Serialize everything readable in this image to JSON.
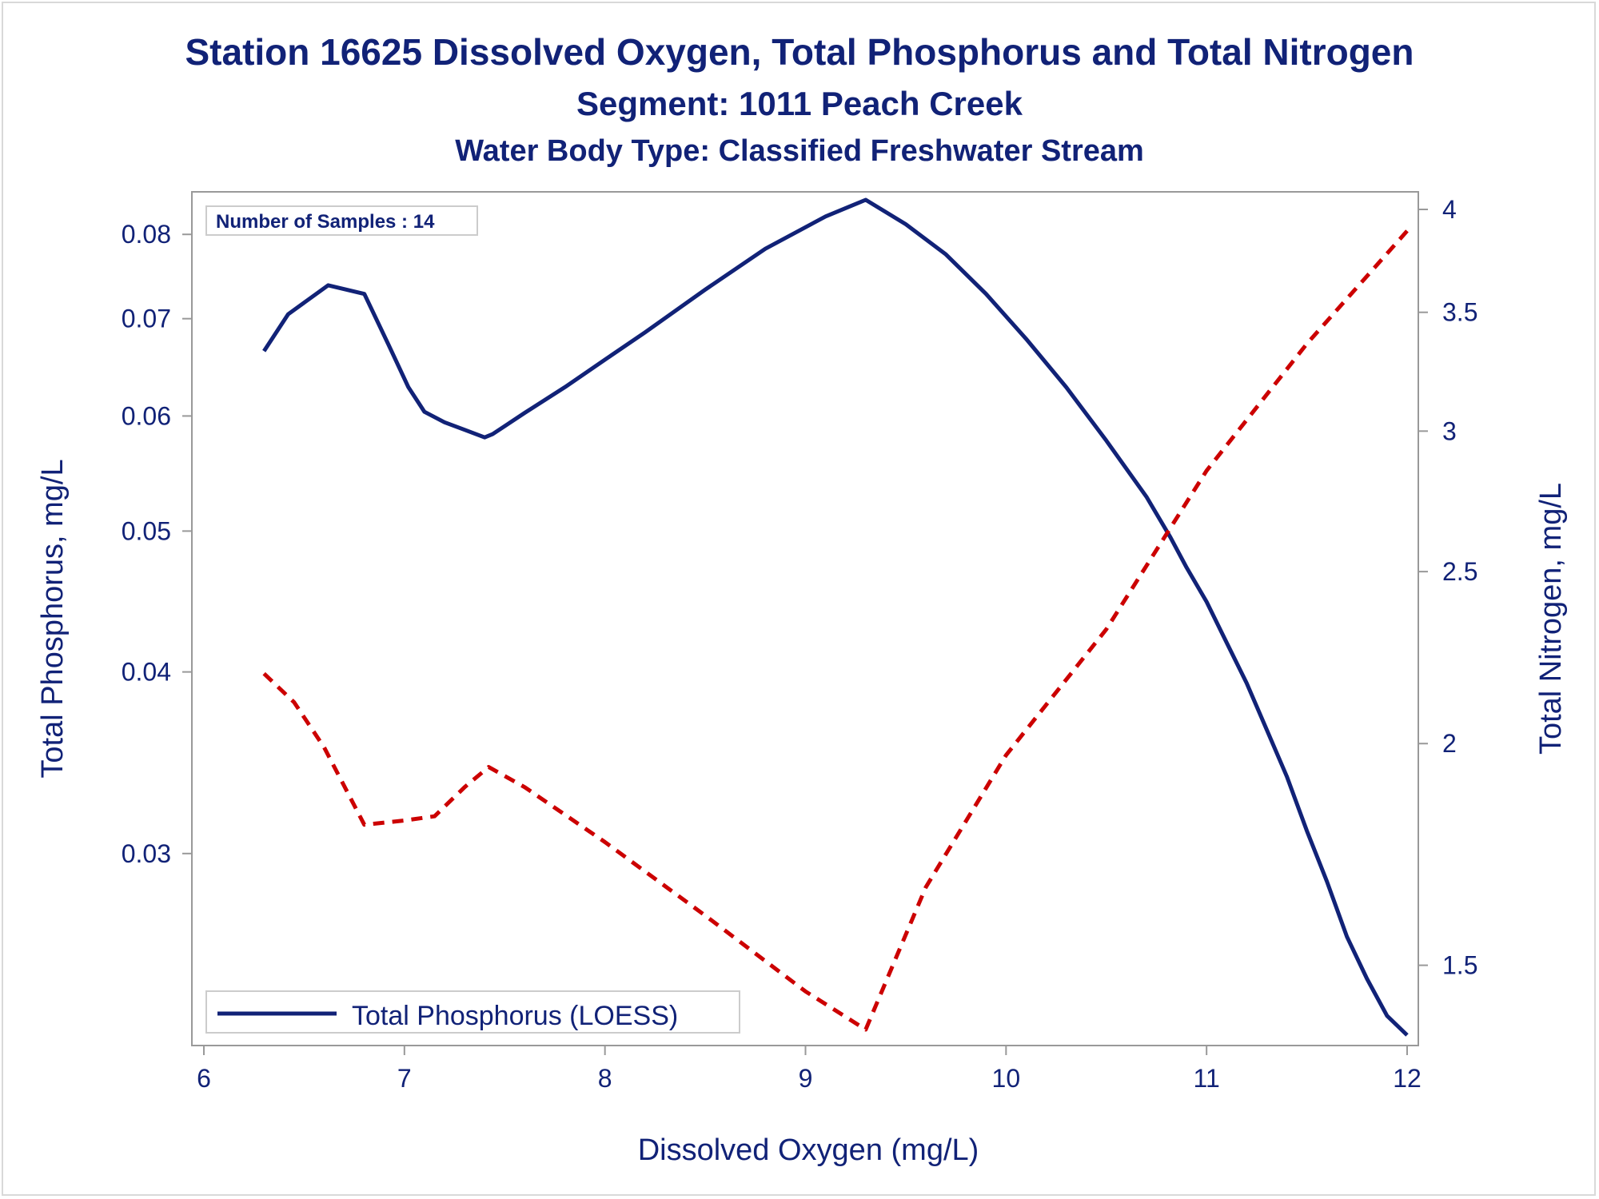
{
  "chart_data": {
    "type": "line",
    "title": "Station 16625  Dissolved Oxygen, Total Phosphorus and Total Nitrogen",
    "subtitle": "Segment: 1011  Peach Creek",
    "subtitle2": "Water Body Type: Classified Freshwater Stream",
    "xlabel": "Dissolved Oxygen (mg/L)",
    "ylabel": "Total Phosphorus, mg/L",
    "y2label": "Total Nitrogen, mg/L",
    "xlim": [
      6,
      12
    ],
    "xticks": [
      6,
      7,
      8,
      9,
      10,
      11,
      12
    ],
    "y_scale": "log",
    "ylim": [
      0.0225,
      0.0845
    ],
    "yticks": [
      0.03,
      0.04,
      0.05,
      0.06,
      0.07,
      0.08
    ],
    "ytick_labels": [
      "0.03",
      "0.04",
      "0.05",
      "0.06",
      "0.07",
      "0.08"
    ],
    "y2lim": [
      1.37,
      4.05
    ],
    "y2ticks": [
      1.5,
      2,
      2.5,
      3,
      3.5,
      4
    ],
    "y2tick_labels": [
      "1.5",
      "2",
      "2.5",
      "3",
      "3.5",
      "4"
    ],
    "grid": false,
    "inset_label": "Number of Samples : 14",
    "legend_position": "bottom-left",
    "series": [
      {
        "name": "Total Phosphorus (LOESS)",
        "axis": "left",
        "color": "#112277",
        "style": "solid",
        "x": [
          6.3,
          6.42,
          6.62,
          6.8,
          6.92,
          7.02,
          7.1,
          7.2,
          7.3,
          7.4,
          7.44,
          7.6,
          7.8,
          8.0,
          8.2,
          8.5,
          8.8,
          9.1,
          9.3,
          9.5,
          9.7,
          9.9,
          10.1,
          10.3,
          10.5,
          10.7,
          10.82,
          10.9,
          11.0,
          11.1,
          11.2,
          11.3,
          11.4,
          11.5,
          11.6,
          11.7,
          11.8,
          11.9,
          12.0
        ],
        "y": [
          0.0665,
          0.0705,
          0.0738,
          0.0728,
          0.0672,
          0.0628,
          0.0604,
          0.0594,
          0.0587,
          0.058,
          0.0583,
          0.0603,
          0.0628,
          0.0656,
          0.0685,
          0.0733,
          0.0782,
          0.0823,
          0.0845,
          0.0813,
          0.0775,
          0.0728,
          0.0678,
          0.0628,
          0.0577,
          0.0528,
          0.0495,
          0.0472,
          0.0447,
          0.0419,
          0.0393,
          0.0365,
          0.0339,
          0.0311,
          0.0287,
          0.0263,
          0.0246,
          0.0232,
          0.0225
        ]
      },
      {
        "name": "Total Nitrogen",
        "axis": "right",
        "color": "#cc0000",
        "style": "dashed",
        "x": [
          6.3,
          6.45,
          6.6,
          6.8,
          7.0,
          7.15,
          7.3,
          7.42,
          7.6,
          8.0,
          8.5,
          9.0,
          9.3,
          9.6,
          10.0,
          10.5,
          11.0,
          11.5,
          12.0
        ],
        "y": [
          2.19,
          2.11,
          1.99,
          1.8,
          1.81,
          1.82,
          1.89,
          1.94,
          1.89,
          1.76,
          1.6,
          1.45,
          1.38,
          1.66,
          1.97,
          2.32,
          2.85,
          3.36,
          3.89
        ]
      }
    ]
  }
}
